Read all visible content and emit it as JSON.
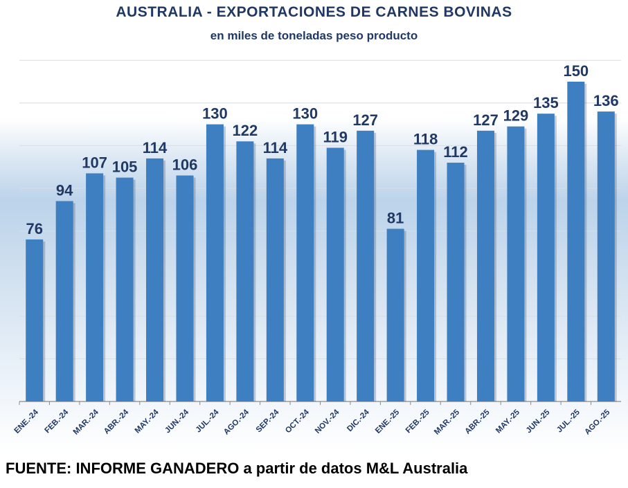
{
  "chart_data": {
    "type": "bar",
    "title": "AUSTRALIA - EXPORTACIONES DE CARNES BOVINAS",
    "subtitle": "en miles de toneladas peso producto",
    "categories": [
      "ENE.-24",
      "FEB.-24",
      "MAR.-24",
      "ABR.-24",
      "MAY.-24",
      "JUN.-24",
      "JUL.-24",
      "AGO.-24",
      "SEP.-24",
      "OCT.-24",
      "NOV.-24",
      "DIC.-24",
      "ENE.-25",
      "FEB.-25",
      "MAR.-25",
      "ABR.-25",
      "MAY.-25",
      "JUN.-25",
      "JUL.-25",
      "AGO.-25"
    ],
    "values": [
      76,
      94,
      107,
      105,
      114,
      106,
      130,
      122,
      114,
      130,
      119,
      127,
      81,
      118,
      112,
      127,
      129,
      135,
      150,
      136
    ],
    "ylim": [
      0,
      160
    ],
    "grid": true,
    "legend": "none",
    "bar_color": "#3d7fc1",
    "label_color": "#1f3864"
  },
  "footer": {
    "source": "FUENTE: INFORME GANADERO a partir de datos M&L Australia"
  }
}
